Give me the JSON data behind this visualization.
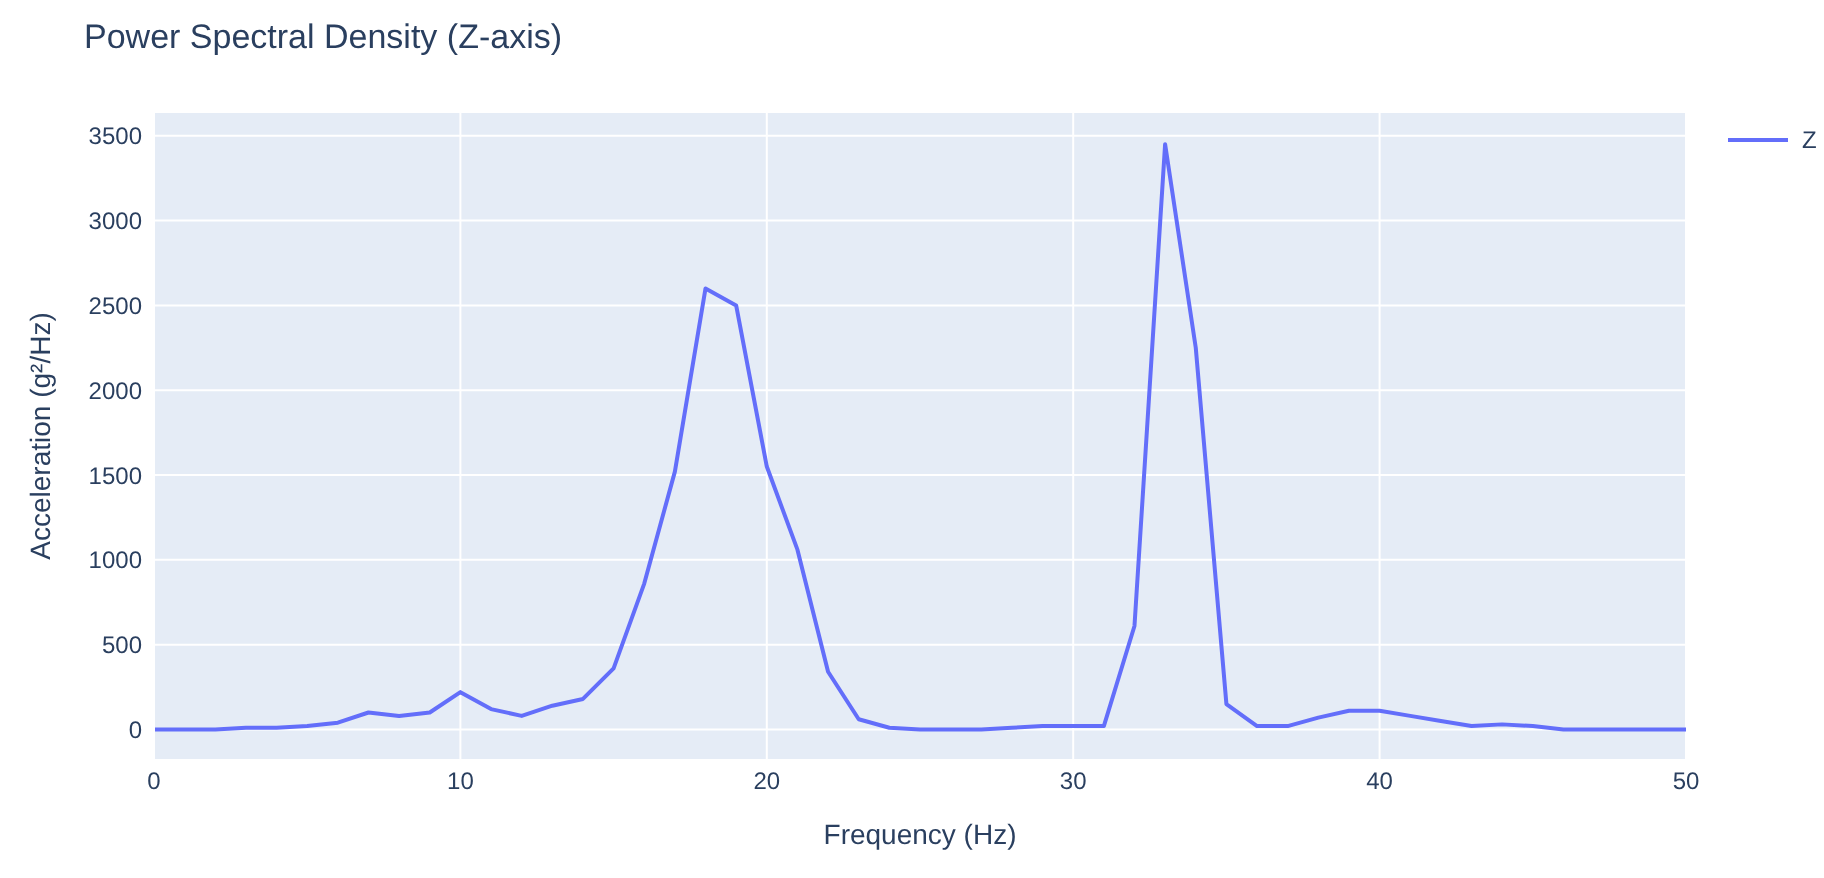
{
  "chart_data": {
    "type": "line",
    "title": "Power Spectral Density (Z-axis)",
    "xlabel": "Frequency (Hz)",
    "ylabel": "Acceleration (g²/Hz)",
    "x": [
      0,
      1,
      2,
      3,
      4,
      5,
      6,
      7,
      8,
      9,
      10,
      11,
      12,
      13,
      14,
      15,
      16,
      17,
      18,
      19,
      20,
      21,
      22,
      23,
      24,
      25,
      26,
      27,
      28,
      29,
      30,
      31,
      32,
      33,
      34,
      35,
      36,
      37,
      38,
      39,
      40,
      41,
      42,
      43,
      44,
      45,
      46,
      47,
      48,
      49,
      50
    ],
    "series": [
      {
        "name": "Z",
        "color": "#636efa",
        "values": [
          0,
          0,
          0,
          10,
          10,
          20,
          40,
          100,
          80,
          100,
          220,
          120,
          80,
          140,
          180,
          360,
          860,
          1520,
          2600,
          2500,
          1550,
          1060,
          340,
          60,
          10,
          0,
          0,
          0,
          10,
          20,
          20,
          20,
          610,
          3450,
          2250,
          150,
          20,
          20,
          70,
          110,
          110,
          80,
          50,
          20,
          30,
          20,
          0,
          0,
          0,
          0,
          0
        ]
      }
    ],
    "xlim": [
      0,
      50
    ],
    "xticks": [
      0,
      10,
      20,
      30,
      40,
      50
    ],
    "ylim": [
      -180,
      3640
    ],
    "yticks": [
      0,
      500,
      1000,
      1500,
      2000,
      2500,
      3000,
      3500
    ],
    "grid": true,
    "legend": "top right"
  }
}
